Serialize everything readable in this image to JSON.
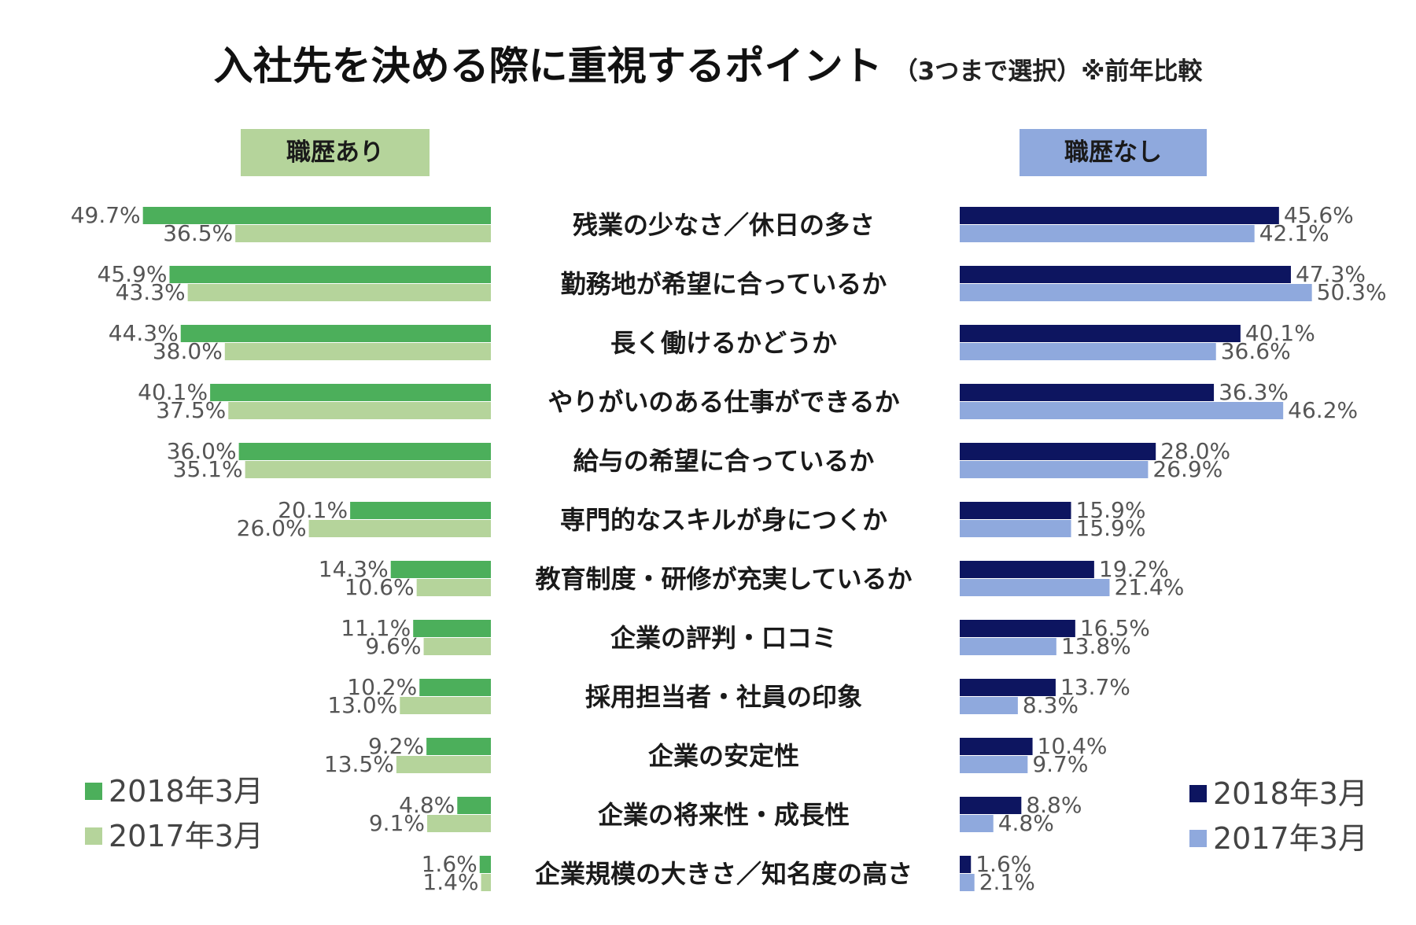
{
  "title": "入社先を決める際に重視するポイント",
  "subtitle": "（3つまで選択）※前年比較",
  "panels": {
    "left_label": "職歴あり",
    "right_label": "職歴なし"
  },
  "legend": {
    "left": [
      {
        "label": "2018年3月",
        "color": "#4caf5b"
      },
      {
        "label": "2017年3月",
        "color": "#b5d49b"
      }
    ],
    "right": [
      {
        "label": "2018年3月",
        "color": "#0d1560"
      },
      {
        "label": "2017年3月",
        "color": "#8fa9dd"
      }
    ]
  },
  "chart_data": {
    "type": "bar",
    "orientation": "horizontal",
    "categories": [
      "残業の少なさ／休日の多さ",
      "勤務地が希望に合っているか",
      "長く働けるかどうか",
      "やりがいのある仕事ができるか",
      "給与の希望に合っているか",
      "専門的なスキルが身につくか",
      "教育制度・研修が充実しているか",
      "企業の評判・口コミ",
      "採用担当者・社員の印象",
      "企業の安定性",
      "企業の将来性・成長性",
      "企業規模の大きさ／知名度の高さ"
    ],
    "panels": [
      {
        "label": "職歴あり",
        "series": [
          {
            "name": "2018年3月",
            "color": "#4caf5b",
            "values": [
              49.7,
              45.9,
              44.3,
              40.1,
              36.0,
              20.1,
              14.3,
              11.1,
              10.2,
              9.2,
              4.8,
              1.6
            ],
            "labels": [
              "49.7%",
              "45.9%",
              "44.3%",
              "40.1%",
              "36.0%",
              "20.1%",
              "14.3%",
              "11.1%",
              "10.2%",
              "9.2%",
              "4.8%",
              "1.6%"
            ]
          },
          {
            "name": "2017年3月",
            "color": "#b5d49b",
            "values": [
              36.5,
              43.3,
              38.0,
              37.5,
              35.1,
              26.0,
              10.6,
              9.6,
              13.0,
              13.5,
              9.1,
              1.4
            ],
            "labels": [
              "36.5%",
              "43.3%",
              "38.0%",
              "37.5%",
              "35.1%",
              "26.0%",
              "10.6%",
              "9.6%",
              "13.0%",
              "13.5%",
              "9.1%",
              "1.4%"
            ]
          }
        ]
      },
      {
        "label": "職歴なし",
        "series": [
          {
            "name": "2018年3月",
            "color": "#0d1560",
            "values": [
              45.6,
              47.3,
              40.1,
              36.3,
              28.0,
              15.9,
              19.2,
              16.5,
              13.7,
              10.4,
              8.8,
              1.6
            ],
            "labels": [
              "45.6%",
              "47.3%",
              "40.1%",
              "36.3%",
              "28.0%",
              "15.9%",
              "19.2%",
              "16.5%",
              "13.7%",
              "10.4%",
              "8.8%",
              "1.6%"
            ]
          },
          {
            "name": "2017年3月",
            "color": "#8fa9dd",
            "values": [
              42.1,
              50.3,
              36.6,
              46.2,
              26.9,
              15.9,
              21.4,
              13.8,
              8.3,
              9.7,
              4.8,
              2.1
            ],
            "labels": [
              "42.1%",
              "50.3%",
              "36.6%",
              "46.2%",
              "26.9%",
              "15.9%",
              "21.4%",
              "13.8%",
              "8.3%",
              "9.7%",
              "4.8%",
              "2.1%"
            ]
          }
        ]
      }
    ],
    "grid": false,
    "legend_placement": "bottom-left and bottom-right"
  }
}
